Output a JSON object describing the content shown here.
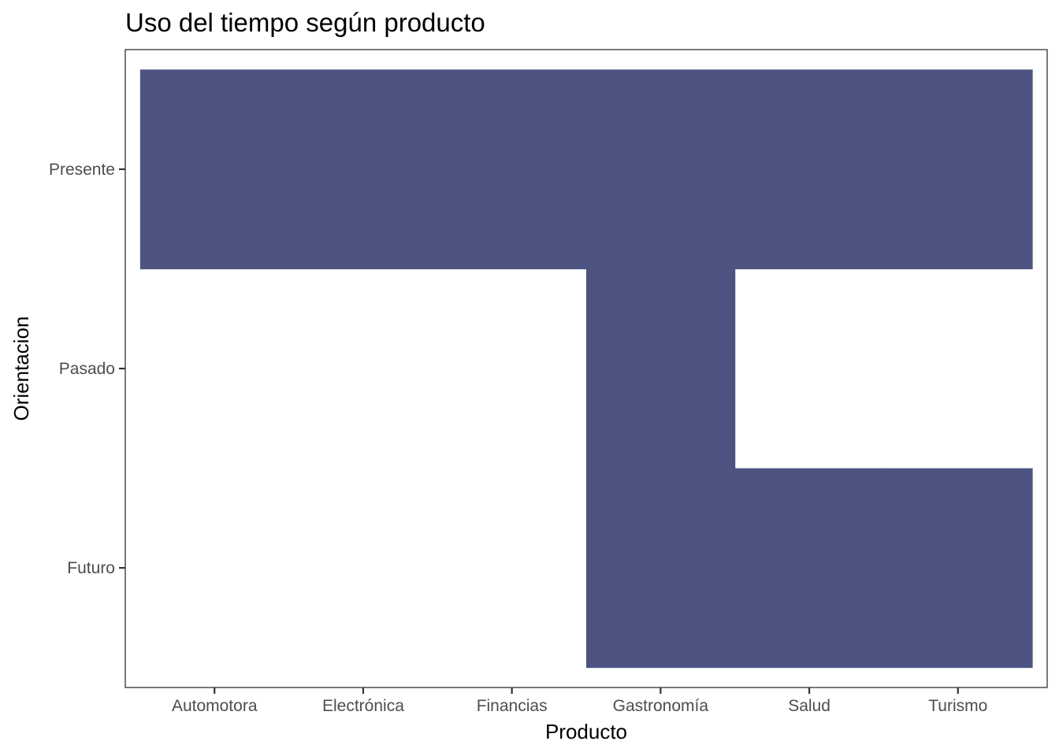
{
  "chart_data": {
    "type": "heatmap",
    "title": "Uso del tiempo según producto",
    "xlabel": "Producto",
    "ylabel": "Orientacion",
    "x_categories": [
      "Automotora",
      "Electrónica",
      "Financias",
      "Gastronomía",
      "Salud",
      "Turismo"
    ],
    "y_categories": [
      "Futuro",
      "Pasado",
      "Presente"
    ],
    "tiles": [
      {
        "x": "Automotora",
        "y": "Presente"
      },
      {
        "x": "Electrónica",
        "y": "Presente"
      },
      {
        "x": "Financias",
        "y": "Presente"
      },
      {
        "x": "Gastronomía",
        "y": "Presente"
      },
      {
        "x": "Salud",
        "y": "Presente"
      },
      {
        "x": "Turismo",
        "y": "Presente"
      },
      {
        "x": "Gastronomía",
        "y": "Pasado"
      },
      {
        "x": "Gastronomía",
        "y": "Futuro"
      },
      {
        "x": "Salud",
        "y": "Futuro"
      },
      {
        "x": "Turismo",
        "y": "Futuro"
      }
    ],
    "fill_color": "#4e5481",
    "background": "#ffffff",
    "grid": false,
    "legend": "none"
  }
}
